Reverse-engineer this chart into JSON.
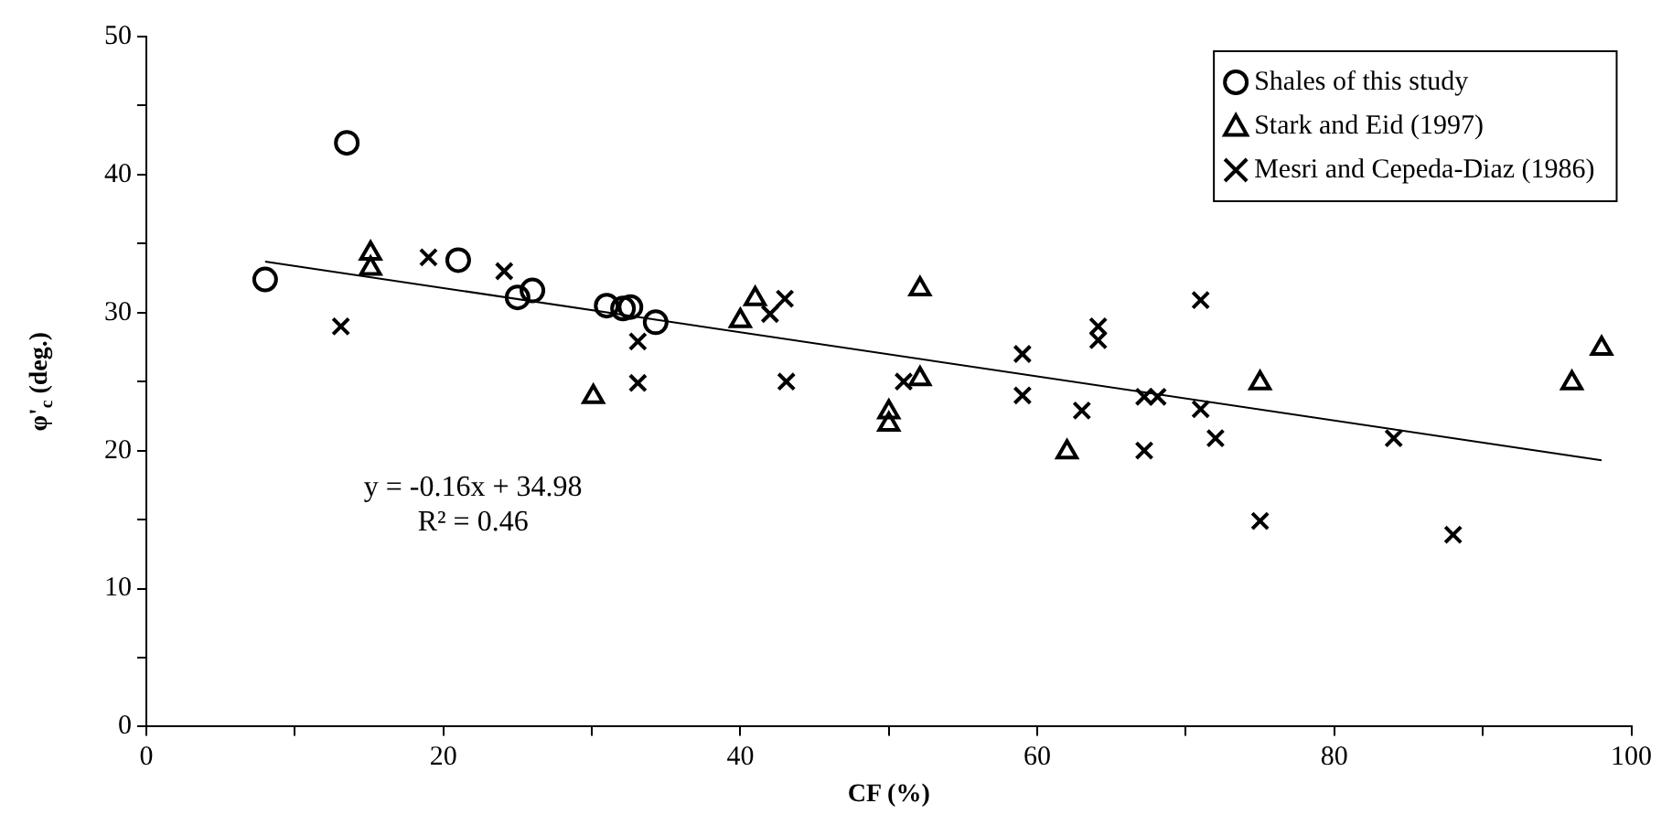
{
  "chart_data": {
    "type": "scatter",
    "xlabel": "CF (%)",
    "ylabel": "φ'$_{c}$ (deg.)",
    "xlim": [
      0,
      100
    ],
    "ylim": [
      0,
      50
    ],
    "xticks": [
      0,
      {
        "value": 10,
        "label": null
      },
      20,
      {
        "value": 30,
        "label": null
      },
      40,
      {
        "value": 50,
        "label": null
      },
      60,
      {
        "value": 70,
        "label": null
      },
      80,
      {
        "value": 90,
        "label": null
      },
      100
    ],
    "yticks": [
      0,
      {
        "value": 5,
        "label": null
      },
      10,
      {
        "value": 15,
        "label": null
      },
      20,
      {
        "value": 25,
        "label": null
      },
      30,
      {
        "value": 35,
        "label": null
      },
      40,
      {
        "value": 45,
        "label": null
      },
      50
    ],
    "grid": false,
    "legend": "top right",
    "annotations": [
      "y = -0.16x + 34.98",
      "R² = 0.46"
    ],
    "series": [
      {
        "name": "Shales of this study",
        "type": "scatter",
        "marker": "circle",
        "color": "#000000",
        "x": [
          8,
          13.5,
          21,
          25,
          26,
          31,
          32.1,
          32.6,
          34.3
        ],
        "values": [
          32.4,
          42.3,
          33.8,
          31.1,
          31.6,
          30.5,
          30.3,
          30.4,
          29.3
        ]
      },
      {
        "name": "Stark and Eid (1997)",
        "type": "scatter",
        "marker": "triangle",
        "color": "#000000",
        "x": [
          15.1,
          15.1,
          30.1,
          40,
          41,
          50,
          50,
          52.1,
          52.1,
          62,
          75,
          96,
          98
        ],
        "values": [
          34.3,
          33.2,
          23.9,
          29.4,
          31,
          22.8,
          21.9,
          31.7,
          25.2,
          19.9,
          24.9,
          24.9,
          27.4
        ]
      },
      {
        "name": "Mesri and Cepeda-Diaz (1986)",
        "type": "scatter",
        "marker": "cross",
        "color": "#000000",
        "x": [
          13.1,
          19,
          24.1,
          33.1,
          33.1,
          42,
          43,
          43.1,
          51,
          59,
          59,
          63,
          64.1,
          64.1,
          67.2,
          67.2,
          68.1,
          71,
          71,
          72,
          75,
          84,
          88
        ],
        "values": [
          29,
          34,
          33,
          27.9,
          24.9,
          29.9,
          31,
          25,
          25,
          27,
          24,
          22.9,
          29,
          28,
          23.9,
          20,
          23.9,
          30.9,
          23,
          20.9,
          14.9,
          20.9,
          13.9
        ]
      },
      {
        "type": "line",
        "marker": "none",
        "line_style": "solid",
        "color": "#000000",
        "x": [
          8,
          98
        ],
        "values": [
          33.7,
          19.3
        ]
      }
    ]
  }
}
